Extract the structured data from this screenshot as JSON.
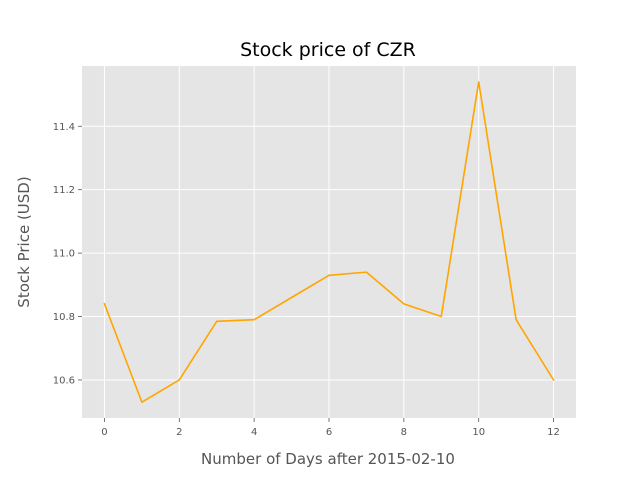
{
  "chart_data": {
    "type": "line",
    "title": "Stock price of CZR",
    "xlabel": "Number of Days after 2015-02-10",
    "ylabel": "Stock Price (USD)",
    "x": [
      0,
      1,
      2,
      3,
      4,
      5,
      6,
      7,
      8,
      9,
      10,
      11,
      12
    ],
    "series": [
      {
        "values": [
          10.84,
          10.53,
          10.6,
          10.785,
          10.79,
          10.86,
          10.93,
          10.94,
          10.84,
          10.8,
          11.54,
          10.79,
          10.6
        ]
      }
    ],
    "xlim": [
      -0.6,
      12.6
    ],
    "ylim": [
      10.48,
      11.59
    ],
    "xticks": [
      0,
      2,
      4,
      6,
      8,
      10,
      12
    ],
    "xtick_labels": [
      "0",
      "2",
      "4",
      "6",
      "8",
      "10",
      "12"
    ],
    "yticks": [
      10.6,
      10.8,
      11.0,
      11.2,
      11.4
    ],
    "ytick_labels": [
      "10.6",
      "10.8",
      "11.0",
      "11.2",
      "11.4"
    ],
    "grid": true,
    "colors": {
      "background": "#e5e5e5",
      "series": "#ffa500"
    }
  }
}
